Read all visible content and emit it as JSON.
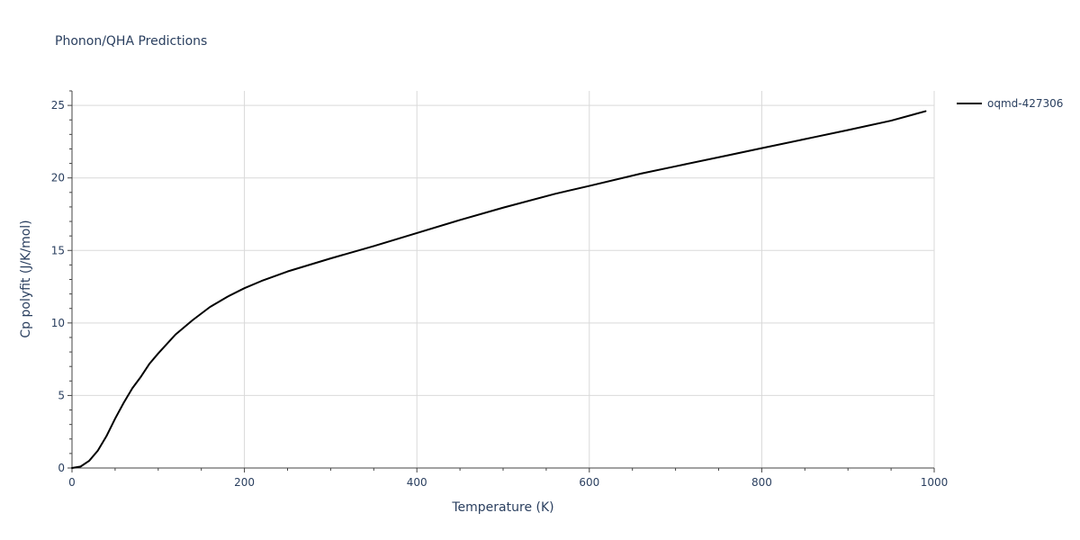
{
  "chart_data": {
    "type": "line",
    "title": "Phonon/QHA Predictions",
    "xlabel": "Temperature (K)",
    "ylabel": "Cp polyfit (J/K/mol)",
    "xlim": [
      0,
      1000
    ],
    "ylim": [
      0,
      26
    ],
    "x_ticks": [
      0,
      200,
      400,
      600,
      800,
      1000
    ],
    "y_ticks": [
      0,
      5,
      10,
      15,
      20,
      25
    ],
    "x_minor_step": 50,
    "y_minor_step": 1,
    "grid": true,
    "legend_position": "top-right",
    "colors": {
      "series": "#000000",
      "text": "#2a3f5f",
      "grid": "#d9d9d9",
      "axis": "#444444"
    },
    "series": [
      {
        "name": "oqmd-427306",
        "x": [
          0,
          10,
          20,
          30,
          40,
          50,
          60,
          70,
          80,
          90,
          100,
          120,
          140,
          160,
          180,
          200,
          220,
          250,
          300,
          350,
          400,
          450,
          500,
          560,
          600,
          660,
          700,
          760,
          800,
          860,
          900,
          950,
          990
        ],
        "y": [
          0,
          0.1,
          0.5,
          1.2,
          2.2,
          3.4,
          4.5,
          5.5,
          6.3,
          7.2,
          7.9,
          9.2,
          10.2,
          11.1,
          11.8,
          12.4,
          12.9,
          13.55,
          14.45,
          15.3,
          16.2,
          17.1,
          17.95,
          18.9,
          19.45,
          20.3,
          20.8,
          21.55,
          22.05,
          22.8,
          23.3,
          23.95,
          24.6
        ]
      }
    ]
  }
}
